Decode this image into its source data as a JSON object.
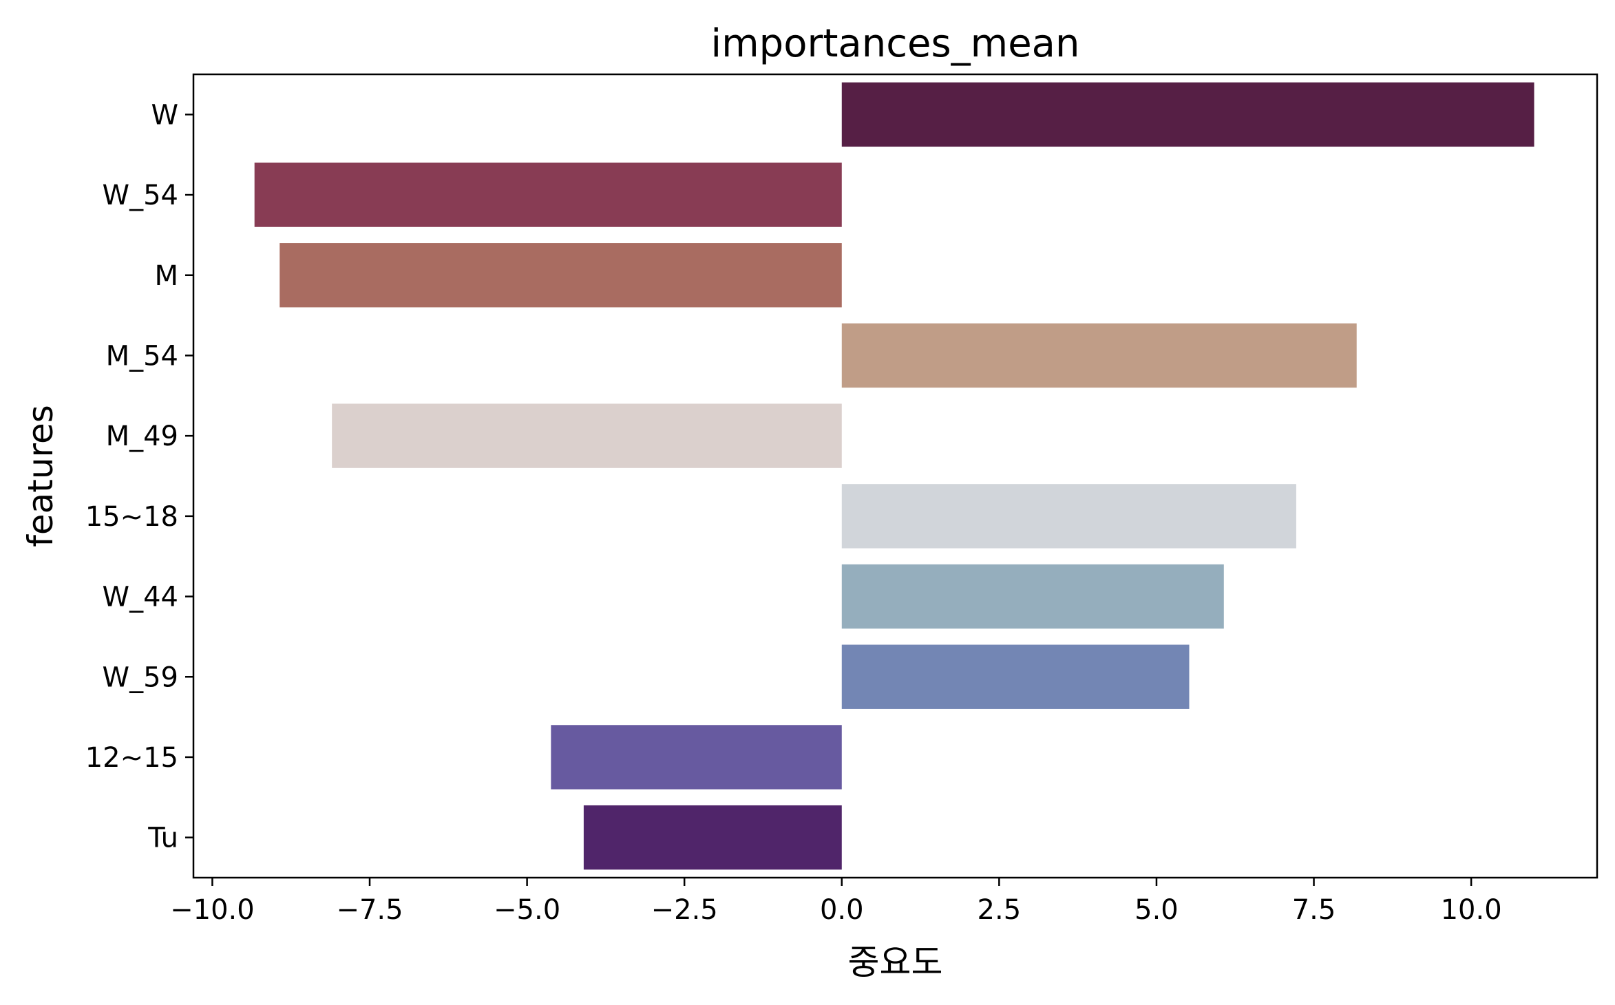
{
  "chart_data": {
    "type": "bar",
    "orientation": "horizontal",
    "title": "importances_mean",
    "xlabel": "중요도",
    "ylabel": "features",
    "categories": [
      "W",
      "W_54",
      "M",
      "M_54",
      "M_49",
      "15~18",
      "W_44",
      "W_59",
      "12~15",
      "Tu"
    ],
    "values": [
      11.0,
      -9.33,
      -8.93,
      8.18,
      -8.1,
      7.22,
      6.07,
      5.52,
      -4.62,
      -4.1
    ],
    "colors": [
      "#561f45",
      "#883c54",
      "#a96c61",
      "#c09d87",
      "#dbd0cd",
      "#d1d5da",
      "#95aebd",
      "#7386b4",
      "#675aa0",
      "#50256a"
    ],
    "xlim": [
      -10.3,
      12.0
    ],
    "xticks": [
      -10.0,
      -7.5,
      -5.0,
      -2.5,
      0.0,
      2.5,
      5.0,
      7.5,
      10.0
    ],
    "xtick_labels": [
      "−10.0",
      "−7.5",
      "−5.0",
      "−2.5",
      "0.0",
      "2.5",
      "5.0",
      "7.5",
      "10.0"
    ],
    "grid": false,
    "legend": false
  }
}
